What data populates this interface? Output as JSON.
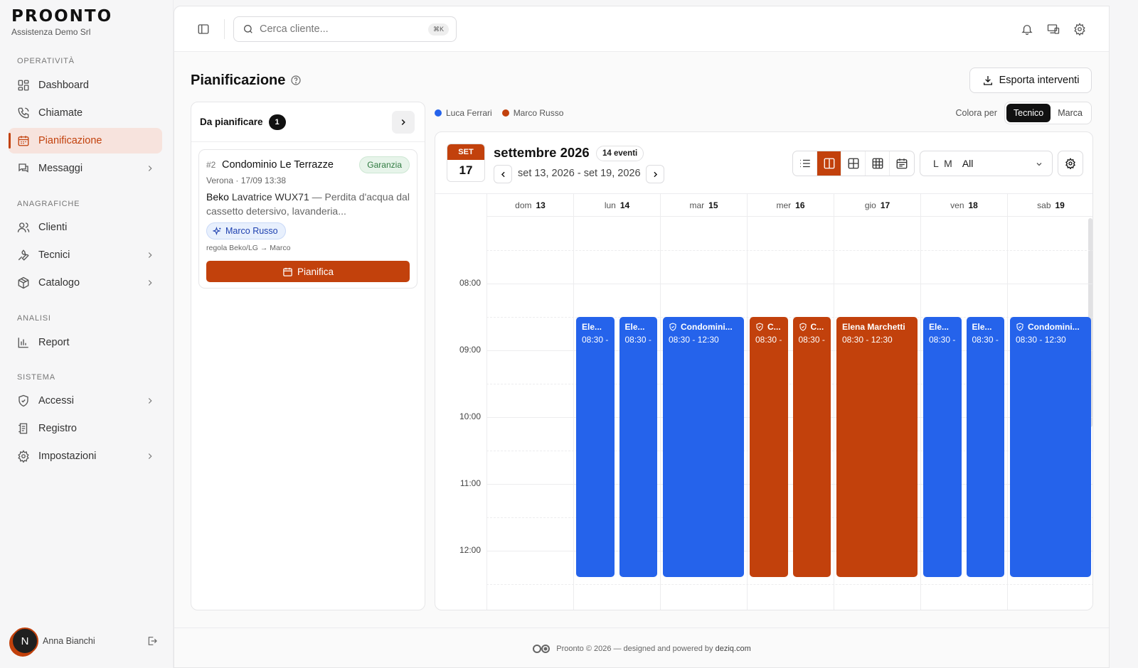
{
  "brand": {
    "name": "PROONTO",
    "company": "Assistenza Demo Srl"
  },
  "sidebar": {
    "sections": [
      {
        "label": "OPERATIVITÀ"
      },
      {
        "label": "ANAGRAFICHE"
      },
      {
        "label": "ANALISI"
      },
      {
        "label": "SISTEMA"
      }
    ],
    "items": [
      {
        "label": "Dashboard",
        "icon": "dashboard-icon"
      },
      {
        "label": "Chiamate",
        "icon": "phone-icon"
      },
      {
        "label": "Pianificazione",
        "icon": "calendar-icon",
        "active": true
      },
      {
        "label": "Messaggi",
        "icon": "message-icon",
        "expandable": true
      },
      {
        "label": "Clienti",
        "icon": "users-icon"
      },
      {
        "label": "Tecnici",
        "icon": "wrench-icon",
        "expandable": true
      },
      {
        "label": "Catalogo",
        "icon": "package-icon",
        "expandable": true
      },
      {
        "label": "Report",
        "icon": "bar-chart-icon"
      },
      {
        "label": "Accessi",
        "icon": "shield-icon",
        "expandable": true
      },
      {
        "label": "Registro",
        "icon": "log-icon"
      },
      {
        "label": "Impostazioni",
        "icon": "gear-icon",
        "expandable": true
      }
    ],
    "user": {
      "initial": "N",
      "name": "Anna Bianchi"
    }
  },
  "topbar": {
    "search_placeholder": "Cerca cliente...",
    "search_shortcut": "⌘K"
  },
  "page": {
    "title": "Pianificazione",
    "export_label": "Esporta interventi"
  },
  "backlog": {
    "title": "Da pianificare",
    "count": "1",
    "ticket": {
      "number": "#2",
      "customer": "Condominio Le Terrazze",
      "tag": "Garanzia",
      "meta": "Verona · 17/09 13:38",
      "brand": "Beko",
      "model": "Lavatrice WUX71",
      "description": " — Perdita d'acqua dal cassetto detersivo, lavanderia...",
      "technician": "Marco Russo",
      "rule": "regola Beko/LG → Marco",
      "action": "Pianifica"
    }
  },
  "legend": [
    {
      "name": "Luca Ferrari",
      "color": "#2563eb"
    },
    {
      "name": "Marco Russo",
      "color": "#c2410c"
    }
  ],
  "color_by": {
    "label": "Colora per",
    "options": [
      "Tecnico",
      "Marca"
    ],
    "selected": "Tecnico"
  },
  "calendar": {
    "today_month": "SET",
    "today_day": "17",
    "title": "settembre 2026",
    "events_count": "14 eventi",
    "range": "set 13, 2026 - set 19, 2026",
    "filter_prefix": "L M",
    "filter_value": "All",
    "days": [
      {
        "name": "dom",
        "num": "13"
      },
      {
        "name": "lun",
        "num": "14"
      },
      {
        "name": "mar",
        "num": "15"
      },
      {
        "name": "mer",
        "num": "16"
      },
      {
        "name": "gio",
        "num": "17"
      },
      {
        "name": "ven",
        "num": "18"
      },
      {
        "name": "sab",
        "num": "19"
      }
    ],
    "hours": [
      "08:00",
      "09:00",
      "10:00",
      "11:00",
      "12:00"
    ],
    "events": [
      {
        "day": 1,
        "title": "Ele...",
        "time": "08:30 -",
        "color": "blue",
        "icon": false
      },
      {
        "day": 1,
        "title": "Ele...",
        "time": "08:30 -",
        "color": "blue",
        "icon": false
      },
      {
        "day": 2,
        "title": "Condomini...",
        "time": "08:30 - 12:30",
        "color": "blue",
        "icon": true
      },
      {
        "day": 3,
        "title": "C...",
        "time": "08:30 -",
        "color": "orange",
        "icon": true
      },
      {
        "day": 3,
        "title": "C...",
        "time": "08:30 -",
        "color": "orange",
        "icon": true
      },
      {
        "day": 4,
        "title": "Elena Marchetti",
        "time": "08:30 - 12:30",
        "color": "orange",
        "icon": false
      },
      {
        "day": 5,
        "title": "Ele...",
        "time": "08:30 -",
        "color": "blue",
        "icon": false
      },
      {
        "day": 5,
        "title": "Ele...",
        "time": "08:30 -",
        "color": "blue",
        "icon": false
      },
      {
        "day": 6,
        "title": "Condomini...",
        "time": "08:30 - 12:30",
        "color": "blue",
        "icon": true
      }
    ]
  },
  "footer": {
    "text": "Proonto © 2026 — designed and powered by ",
    "link": "deziq.com"
  }
}
